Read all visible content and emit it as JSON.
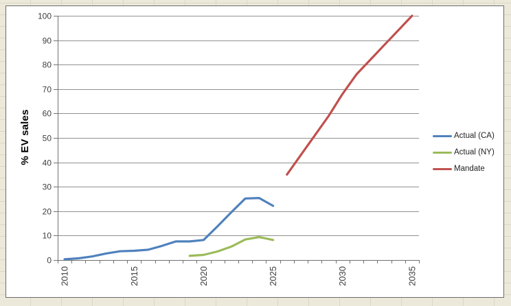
{
  "window": {
    "background_color": "#ece9da",
    "sheet_gridline_color": "#dbd7c6"
  },
  "chart": {
    "background": "#ffffff",
    "frame_border_color": "#6b6b6b",
    "gridline_color": "#8f8f8f",
    "axis_color": "#707070",
    "tick_label_color": "#3d3d3d"
  },
  "chart_data": {
    "type": "line",
    "title": "",
    "xlabel": "",
    "ylabel": "% EV sales",
    "x_min": 2010,
    "x_max": 2035,
    "x_tick_years": [
      2010,
      2015,
      2020,
      2025,
      2030,
      2035
    ],
    "ylim": [
      0,
      100
    ],
    "y_ticks": [
      0,
      10,
      20,
      30,
      40,
      50,
      60,
      70,
      80,
      90,
      100
    ],
    "grid": "horizontal",
    "legend_position": "right",
    "series": [
      {
        "name": "Actual (CA)",
        "color": "#4F81BD",
        "points": [
          [
            2010,
            0.3
          ],
          [
            2011,
            0.7
          ],
          [
            2012,
            1.5
          ],
          [
            2013,
            2.7
          ],
          [
            2014,
            3.6
          ],
          [
            2015,
            3.8
          ],
          [
            2016,
            4.2
          ],
          [
            2017,
            5.8
          ],
          [
            2018,
            7.6
          ],
          [
            2019,
            7.6
          ],
          [
            2020,
            8.2
          ],
          [
            2021,
            13.8
          ],
          [
            2022,
            19.6
          ],
          [
            2023,
            25.2
          ],
          [
            2024,
            25.4
          ],
          [
            2025,
            22.2
          ]
        ]
      },
      {
        "name": "Actual (NY)",
        "color": "#9BBB59",
        "points": [
          [
            2019,
            1.7
          ],
          [
            2020,
            2.1
          ],
          [
            2021,
            3.5
          ],
          [
            2022,
            5.5
          ],
          [
            2023,
            8.4
          ],
          [
            2024,
            9.4
          ],
          [
            2025,
            8.2
          ]
        ]
      },
      {
        "name": "Mandate",
        "color": "#C0504D",
        "points": [
          [
            2026,
            35
          ],
          [
            2027,
            43
          ],
          [
            2028,
            51
          ],
          [
            2029,
            59
          ],
          [
            2030,
            68
          ],
          [
            2031,
            76
          ],
          [
            2032,
            82
          ],
          [
            2033,
            88
          ],
          [
            2034,
            94
          ],
          [
            2035,
            100
          ]
        ]
      }
    ]
  }
}
